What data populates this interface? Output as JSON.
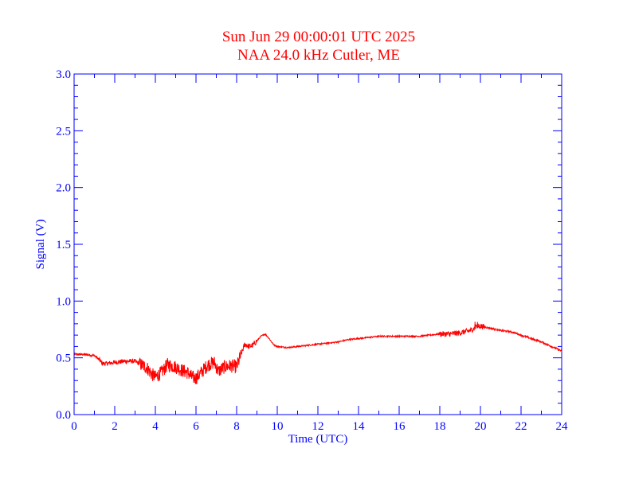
{
  "chart_data": {
    "type": "line",
    "title": "Sun Jun 29 00:00:01 UTC 2025",
    "subtitle": "NAA 24.0 kHz Cutler, ME",
    "xlabel": "Time (UTC)",
    "ylabel": "Signal (V)",
    "xlim": [
      0,
      24
    ],
    "ylim": [
      0.0,
      3.0
    ],
    "xticks": [
      "0",
      "2",
      "4",
      "6",
      "8",
      "10",
      "12",
      "14",
      "16",
      "18",
      "20",
      "22",
      "24"
    ],
    "yticks": [
      "0.0",
      "0.5",
      "1.0",
      "1.5",
      "2.0",
      "2.5",
      "3.0"
    ],
    "grid": false,
    "colors": {
      "axis": "#0000ff",
      "title": "#ff0000",
      "series": "#ff0000"
    },
    "series": [
      {
        "x": [
          0,
          0.5,
          1.0,
          1.2,
          1.4,
          1.6,
          2.0,
          2.5,
          3.0,
          3.3,
          3.6,
          3.8,
          4.0,
          4.3,
          4.6,
          5.0,
          5.3,
          5.6,
          5.8,
          6.0,
          6.3,
          6.6,
          6.9,
          7.1,
          7.4,
          7.7,
          8.0,
          8.2,
          8.4,
          8.6,
          8.8,
          9.0,
          9.2,
          9.4,
          9.6,
          9.8,
          10.0,
          10.5,
          11.0,
          11.5,
          12.0,
          12.5,
          13.0,
          13.5,
          14.0,
          15.0,
          16.0,
          17.0,
          17.5,
          18.0,
          18.5,
          19.0,
          19.5,
          19.8,
          20.0,
          20.5,
          21.0,
          21.5,
          22.0,
          22.5,
          23.0,
          23.5,
          24.0
        ],
        "y": [
          0.53,
          0.53,
          0.52,
          0.49,
          0.45,
          0.45,
          0.46,
          0.47,
          0.47,
          0.44,
          0.41,
          0.36,
          0.33,
          0.37,
          0.44,
          0.42,
          0.39,
          0.37,
          0.33,
          0.32,
          0.38,
          0.44,
          0.46,
          0.38,
          0.42,
          0.43,
          0.42,
          0.52,
          0.62,
          0.6,
          0.61,
          0.65,
          0.69,
          0.71,
          0.67,
          0.62,
          0.6,
          0.59,
          0.6,
          0.61,
          0.62,
          0.63,
          0.64,
          0.66,
          0.67,
          0.69,
          0.69,
          0.69,
          0.7,
          0.71,
          0.71,
          0.72,
          0.74,
          0.77,
          0.78,
          0.76,
          0.74,
          0.73,
          0.7,
          0.67,
          0.64,
          0.6,
          0.56
        ],
        "noise_segments": [
          {
            "x": [
              0.0,
              1.2
            ],
            "amp": 0.01
          },
          {
            "x": [
              1.2,
              3.2
            ],
            "amp": 0.02
          },
          {
            "x": [
              3.2,
              8.2
            ],
            "amp": 0.06
          },
          {
            "x": [
              8.2,
              9.0
            ],
            "amp": 0.025
          },
          {
            "x": [
              9.0,
              18.0
            ],
            "amp": 0.006
          },
          {
            "x": [
              18.0,
              20.2
            ],
            "amp": 0.025
          },
          {
            "x": [
              20.2,
              24.0
            ],
            "amp": 0.008
          }
        ]
      }
    ]
  }
}
